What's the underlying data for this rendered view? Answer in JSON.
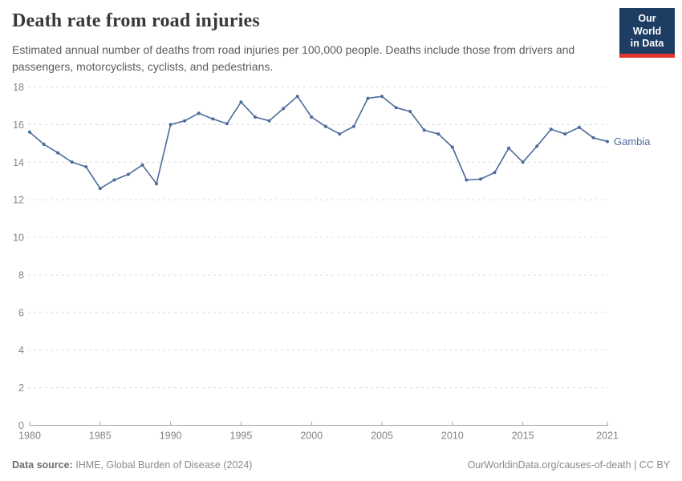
{
  "header": {
    "title": "Death rate from road injuries",
    "subtitle": "Estimated annual number of deaths from road injuries per 100,000 people. Deaths include those from drivers and passengers, motorcyclists, cyclists, and pedestrians.",
    "logo": {
      "line1": "Our World",
      "line2": "in Data"
    }
  },
  "chart_data": {
    "type": "line",
    "title": "Death rate from road injuries",
    "xlabel": "",
    "ylabel": "",
    "x": [
      1980,
      1981,
      1982,
      1983,
      1984,
      1985,
      1986,
      1987,
      1988,
      1989,
      1990,
      1991,
      1992,
      1993,
      1994,
      1995,
      1996,
      1997,
      1998,
      1999,
      2000,
      2001,
      2002,
      2003,
      2004,
      2005,
      2006,
      2007,
      2008,
      2009,
      2010,
      2011,
      2012,
      2013,
      2014,
      2015,
      2016,
      2017,
      2018,
      2019,
      2020,
      2021
    ],
    "series": [
      {
        "name": "Gambia",
        "color": "#4C6A9C",
        "values": [
          15.6,
          14.95,
          14.5,
          14.0,
          13.75,
          12.6,
          13.05,
          13.35,
          13.85,
          12.85,
          16.0,
          16.2,
          16.6,
          16.3,
          16.05,
          17.2,
          16.4,
          16.2,
          16.85,
          17.5,
          16.4,
          15.9,
          15.5,
          15.9,
          17.4,
          17.5,
          16.9,
          16.7,
          15.7,
          15.5,
          14.8,
          13.05,
          13.1,
          13.45,
          14.75,
          14.0,
          14.85,
          15.75,
          15.5,
          15.85,
          15.3,
          15.1
        ]
      }
    ],
    "ylim": [
      0,
      18
    ],
    "yticks": [
      0,
      2,
      4,
      6,
      8,
      10,
      12,
      14,
      16,
      18
    ],
    "xticks": [
      1980,
      1985,
      1990,
      1995,
      2000,
      2005,
      2010,
      2015,
      2021
    ],
    "grid": "horizontal-dashed",
    "legend_position": "end-of-line-label",
    "entity_label": "Gambia"
  },
  "footer": {
    "datasource_label": "Data source:",
    "datasource_value": "IHME, Global Burden of Disease (2024)",
    "credit": "OurWorldinData.org/causes-of-death | CC BY"
  },
  "colors": {
    "line": "#4C6A9C",
    "grid": "#dcdcdc",
    "axis": "#a5a5a5",
    "tick_label": "#858585",
    "logo_bg": "#1d3d63",
    "logo_accent": "#e0352b"
  }
}
